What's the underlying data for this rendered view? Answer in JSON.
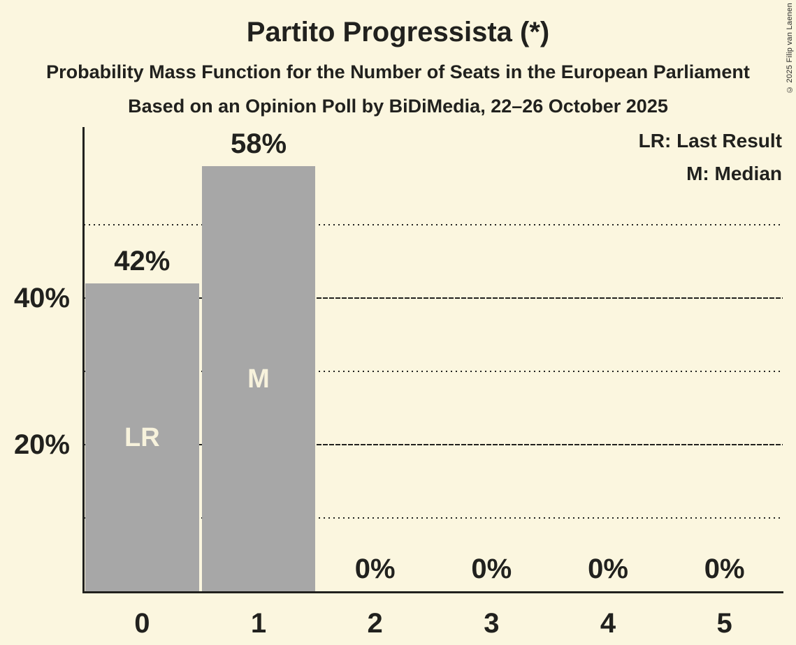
{
  "title": "Partito Progressista (*)",
  "subtitle": "Probability Mass Function for the Number of Seats in the European Parliament",
  "poll_info": "Based on an Opinion Poll by BiDiMedia, 22–26 October 2025",
  "copyright": "© 2025 Filip van Laenen",
  "legend": {
    "last_result": "LR: Last Result",
    "median": "M: Median"
  },
  "colors": {
    "background": "#FBF6DF",
    "bar": "#A7A7A7",
    "bar_annotation_text": "#F7F2DC",
    "text": "#21211E"
  },
  "chart_data": {
    "type": "bar",
    "title": "Partito Progressista (*)",
    "categories": [
      "0",
      "1",
      "2",
      "3",
      "4",
      "5"
    ],
    "values": [
      42,
      58,
      0,
      0,
      0,
      0
    ],
    "value_labels": [
      "42%",
      "58%",
      "0%",
      "0%",
      "0%",
      "0%"
    ],
    "annotations": [
      {
        "category_index": 0,
        "text": "LR",
        "meaning": "Last Result"
      },
      {
        "category_index": 1,
        "text": "M",
        "meaning": "Median"
      }
    ],
    "y_axis": {
      "tick_values": [
        20,
        40
      ],
      "tick_labels": [
        "20%",
        "40%"
      ]
    },
    "gridlines": [
      {
        "value": 10,
        "style": "dotted"
      },
      {
        "value": 20,
        "style": "solid"
      },
      {
        "value": 30,
        "style": "dotted"
      },
      {
        "value": 40,
        "style": "solid"
      },
      {
        "value": 50,
        "style": "dotted"
      }
    ],
    "ylim": [
      0,
      63
    ],
    "grid": "horizontal-only",
    "legend_position": "top-right"
  }
}
